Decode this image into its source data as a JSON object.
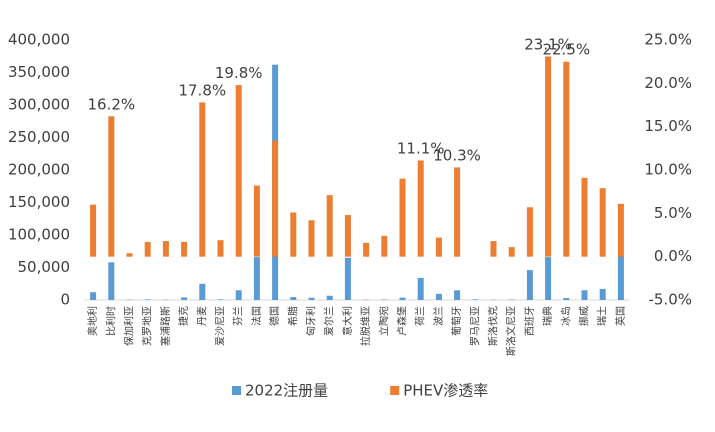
{
  "chart_data": {
    "type": "bar",
    "categories": [
      "奥地利",
      "比利时",
      "保加利亚",
      "克罗地亚",
      "塞浦路斯",
      "捷克",
      "丹麦",
      "爱沙尼亚",
      "芬兰",
      "法国",
      "德国",
      "希腊",
      "匈牙利",
      "爱尔兰",
      "意大利",
      "拉脱维亚",
      "立陶宛",
      "卢森堡",
      "荷兰",
      "波兰",
      "葡萄牙",
      "罗马尼亚",
      "斯洛伐克",
      "斯洛文尼亚",
      "西班牙",
      "瑞典",
      "冰岛",
      "挪威",
      "瑞士",
      "英国"
    ],
    "series": [
      {
        "name": "2022注册量",
        "color": "#5b9bd5",
        "values": [
          12000,
          58000,
          500,
          1000,
          500,
          4000,
          25000,
          1000,
          15000,
          66000,
          362000,
          4500,
          3500,
          6500,
          65000,
          500,
          800,
          3600,
          34000,
          9500,
          15000,
          1000,
          500,
          700,
          46000,
          66000,
          3000,
          15000,
          17000,
          67000
        ]
      },
      {
        "name": "PHEV渗透率",
        "color": "#ed7d31",
        "axis": "y2",
        "values": [
          6.0,
          16.2,
          0.4,
          1.7,
          1.8,
          1.7,
          17.8,
          1.9,
          19.8,
          8.2,
          13.4,
          5.1,
          4.2,
          7.1,
          4.8,
          1.6,
          2.4,
          9.0,
          11.1,
          2.2,
          10.3,
          null,
          1.8,
          1.1,
          5.7,
          23.1,
          22.5,
          9.1,
          7.9,
          6.1
        ],
        "value_labels": [
          null,
          "16.2%",
          null,
          null,
          null,
          null,
          "17.8%",
          null,
          "19.8%",
          null,
          null,
          null,
          null,
          null,
          null,
          null,
          null,
          null,
          "11.1%",
          null,
          "10.3%",
          null,
          null,
          null,
          null,
          "23.1%",
          "22.5%",
          null,
          null,
          null
        ]
      }
    ],
    "ylim": [
      0,
      400000
    ],
    "yticks": [
      0,
      {
        "value": 50000,
        "label": "50,000"
      },
      {
        "value": 100000,
        "label": "100,000"
      },
      {
        "value": 150000,
        "label": "150,000"
      },
      {
        "value": 200000,
        "label": "200,000"
      },
      {
        "value": 250000,
        "label": "250,000"
      },
      {
        "value": 300000,
        "label": "300,000"
      },
      {
        "value": 350000,
        "label": "350,000"
      },
      {
        "value": 400000,
        "label": "400,000"
      }
    ],
    "y2lim": [
      -5,
      25
    ],
    "y2ticks": [
      {
        "value": -5,
        "label": "-5.0%"
      },
      {
        "value": 0,
        "label": "0.0%"
      },
      {
        "value": 5,
        "label": "5.0%"
      },
      {
        "value": 10,
        "label": "10.0%"
      },
      {
        "value": 15,
        "label": "15.0%"
      },
      {
        "value": 20,
        "label": "20.0%"
      },
      {
        "value": 25,
        "label": "25.0%"
      }
    ],
    "legend": "bottom"
  }
}
